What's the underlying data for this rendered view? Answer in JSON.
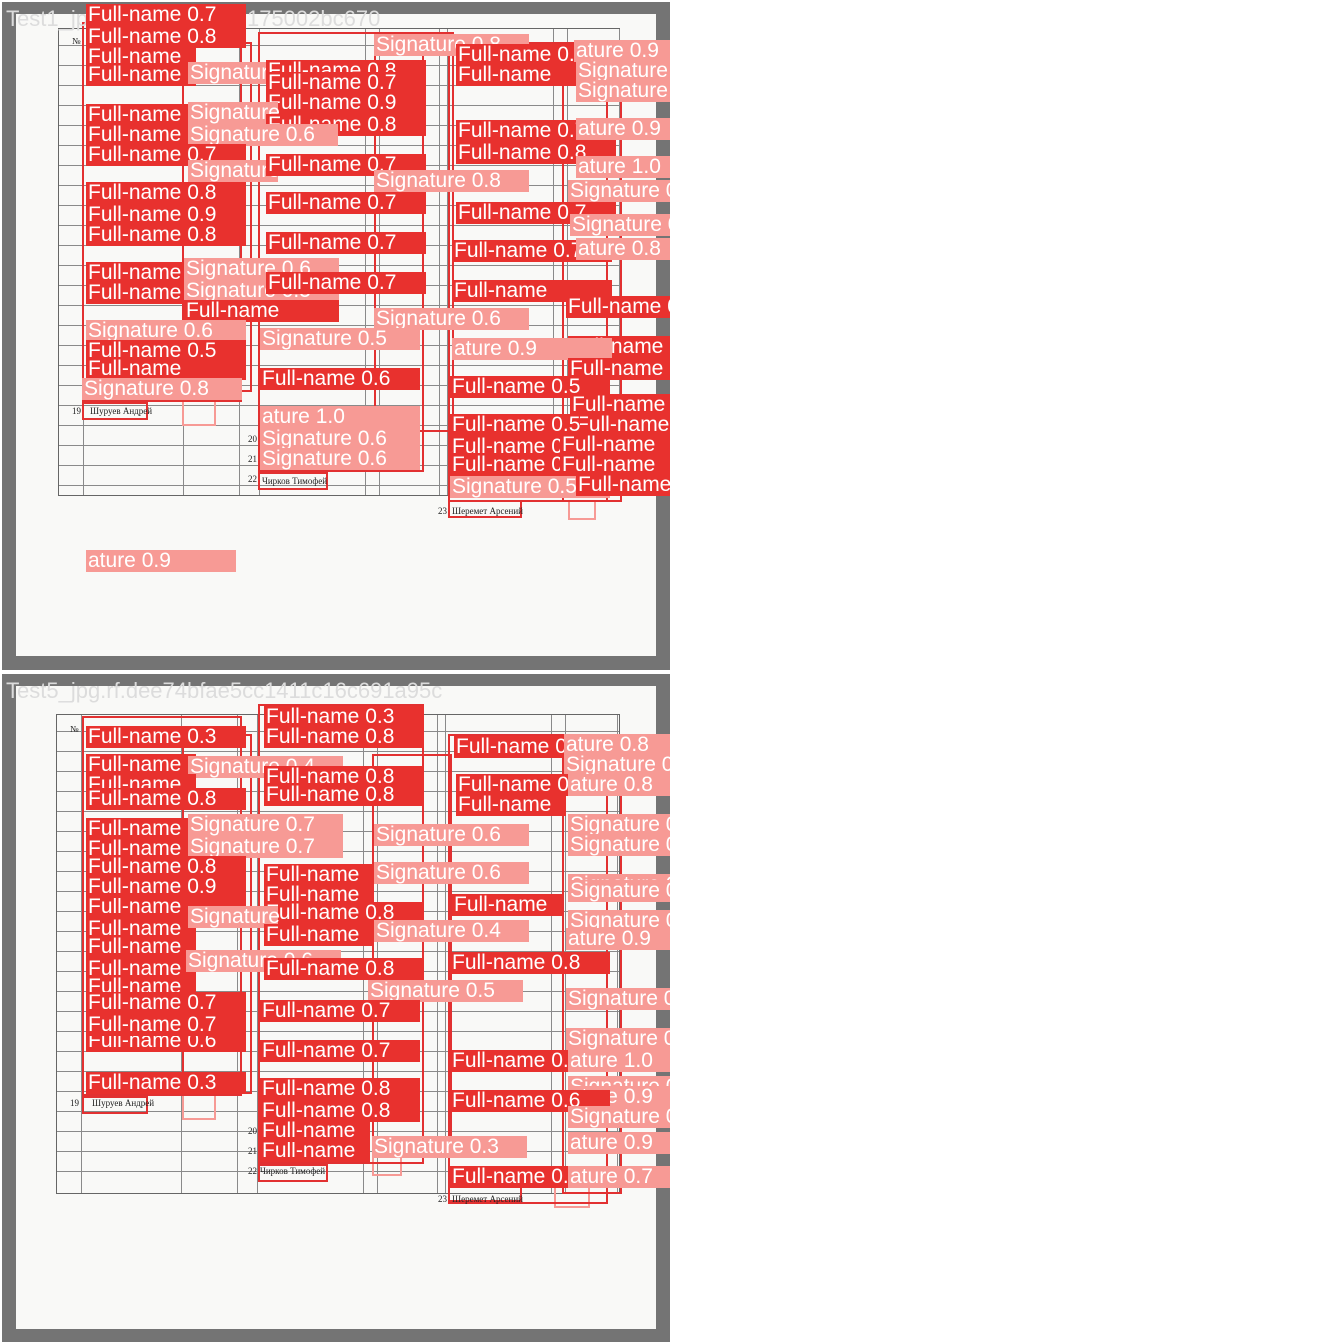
{
  "colors": {
    "full_name_box": "#e23131",
    "signature_box": "#f79a95",
    "panel_frame": "#747474",
    "title_text": "#dcdcdc"
  },
  "panels": [
    {
      "title": "Test1_jpg.rf.e3c217e153175002bc670",
      "doc_text": {
        "header_no": "№",
        "names": [
          "Шуруев Андрей",
          "Чирков Тимофей",
          "Шеремет Арсений"
        ],
        "rows": [
          "19",
          "20",
          "21",
          "22",
          "23"
        ]
      },
      "labels": [
        "Full-name 0.7",
        "Full-name 0.8",
        "Full-name",
        "Signature 0.8",
        "Full-name 0.8",
        "ature 0.9",
        "Full-name",
        "Signature 0.3",
        "Full-name 0.8",
        "Full-name",
        "Signature 0.7",
        "Full-name 0.7",
        "Signature 0.9",
        "Full-name 0.9",
        "Full-name 0.7",
        "Signature",
        "Full-name 0.8",
        "Full-name 0.7",
        "ature 0.9",
        "Full-name",
        "Signature 0.6",
        "Full-name 0.7",
        "Signature",
        "Full-name 0.7",
        "Full-name 0.8",
        "ature 1.0",
        "Signature 0.8",
        "Full-name 0.8",
        "Signature 0.5",
        "Full-name 0.9",
        "Full-name 0.7",
        "Full-name 0.7",
        "Signature 0.8",
        "Full-name 0.8",
        "Full-name 0.7",
        "Full-name 0.7",
        "ature 0.8",
        "Full-name",
        "Signature 0.6",
        "Full-name",
        "Full-name",
        "Signature 0.5",
        "Full-name 0.7",
        "Full-name",
        "Signature 0.6",
        "Signature 0.6",
        "Full-name 0.7",
        "Signature 0.5",
        "Full-name 0.5",
        "Full-name 0.8",
        "ature 0.9",
        "Full-name",
        "Full-name 0.7",
        "Signature 0.8",
        "Full-name 0.6",
        "Full-name 0.5",
        "Full-name 0.7",
        "ature 1.0",
        "Full-name 0.8",
        "Full-name",
        "Signature 0.6",
        "Full-name 0.9",
        "Full-name",
        "Signature 0.6",
        "Full-name 0.5",
        "Full-name",
        "Signature 0.5",
        "Full-name 0.5",
        "ature 0.9"
      ]
    },
    {
      "title": "Test5_jpg.rf.dee74bfae5cc1411c16c691a95c",
      "doc_text": {
        "header_no": "№",
        "names": [
          "Шуруев Андрей",
          "Чирков Тимофей",
          "Шеремет Арсений"
        ],
        "rows": [
          "19",
          "20",
          "21",
          "22",
          "23"
        ]
      },
      "labels": [
        "Full-name 0.3",
        "Full-name 0.3",
        "Full-name 0.8",
        "Full-name 0.7",
        "ature 0.8",
        "Full-name",
        "Signature 0.4",
        "Full-name 0.8",
        "Full-name",
        "Signature 0.9",
        "Full-name 0.8",
        "Full-name 0.8",
        "Full-name 0.8",
        "ature 0.8",
        "Full-name",
        "Full-name",
        "Signature 0.7",
        "Full-name",
        "Signature 0.7",
        "Signature 0.7",
        "Signature 0.6",
        "Full-name",
        "Signature 0.8",
        "Full-name 0.8",
        "Full-name",
        "Signature 0.9",
        "Full-name",
        "Signature 0.6",
        "Full-name",
        "Signature 0.5",
        "Full-name 0.9",
        "Full-name 0.8",
        "Full-name",
        "Signature 0.9",
        "Full-name",
        "Signature",
        "Full-name",
        "Full-name 0.6",
        "ature 0.9",
        "Full-name",
        "Signature 0.4",
        "Full-name",
        "Signature 0.9",
        "Full-name",
        "Signature 0.6",
        "Full-name 0.8",
        "Full-name 0.8",
        "Signature 0.5",
        "Signature 0.7",
        "Full-name 0.7",
        "Full-name 0.7",
        "Full-name 0.7",
        "Signature 0.8",
        "Full-name 0.6",
        "Full-name 0.7",
        "Full-name 0.8",
        "ature 1.0",
        "Full-name 0.8",
        "Full-name 0.3",
        "Full-name 0.8",
        "ature 0.9",
        "Full-name 0.6",
        "Signature 0.5",
        "Full-name",
        "Signature 0.3",
        "Full-name",
        "ature 0.9",
        "Full-name 0.4",
        "ature 0.7"
      ]
    }
  ]
}
